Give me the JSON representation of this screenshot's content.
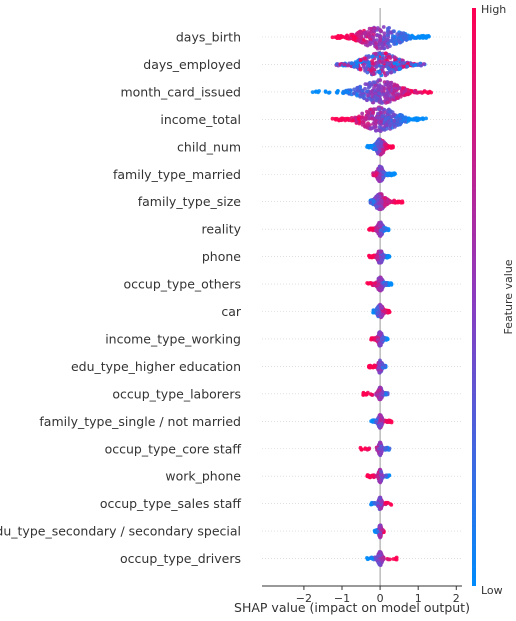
{
  "chart_data": {
    "type": "scatter",
    "subtype": "shap-beeswarm",
    "title": "",
    "xlabel": "SHAP value (impact on model output)",
    "xlim": [
      -3.1,
      2.15
    ],
    "xticks": [
      -2,
      -1,
      0,
      1,
      2
    ],
    "xtick_labels": [
      "−2",
      "−1",
      "0",
      "1",
      "2"
    ],
    "zero_line": true,
    "colorbar": {
      "label": "Feature value",
      "high_label": "High",
      "low_label": "Low",
      "low_color": "#008bfb",
      "mid_color": "#8c3bbf",
      "high_color": "#ff0052"
    },
    "features": [
      {
        "name": "days_birth",
        "min": -1.25,
        "max": 1.3,
        "core": 1.0,
        "peak": 0.5,
        "spread": 1.0,
        "corr": -1
      },
      {
        "name": "days_employed",
        "min": -1.15,
        "max": 1.2,
        "core": 0.95,
        "peak": 0.48,
        "spread": 1.0,
        "corr": 0
      },
      {
        "name": "month_card_issued",
        "min": -1.85,
        "max": 1.35,
        "core": 1.0,
        "peak": 0.45,
        "spread": 1.0,
        "corr": 1
      },
      {
        "name": "income_total",
        "min": -1.35,
        "max": 1.25,
        "core": 0.95,
        "peak": 0.55,
        "spread": 1.0,
        "corr": -1
      },
      {
        "name": "child_num",
        "min": -0.35,
        "max": 0.35,
        "core": 0.25,
        "peak": 0.55,
        "spread": 0.55,
        "corr": 1
      },
      {
        "name": "family_type_married",
        "min": -0.2,
        "max": 0.4,
        "core": 0.15,
        "peak": 0.85,
        "spread": 0.6,
        "corr": -1
      },
      {
        "name": "family_type_size",
        "min": -0.25,
        "max": 0.6,
        "core": 0.3,
        "peak": 0.55,
        "spread": 0.55,
        "corr": 1
      },
      {
        "name": "reality",
        "min": -0.3,
        "max": 0.25,
        "core": 0.15,
        "peak": 0.7,
        "spread": 0.45,
        "corr": -1
      },
      {
        "name": "phone",
        "min": -0.3,
        "max": 0.25,
        "core": 0.12,
        "peak": 0.7,
        "spread": 0.45,
        "corr": -1
      },
      {
        "name": "occup_type_others",
        "min": -0.35,
        "max": 0.3,
        "core": 0.15,
        "peak": 0.7,
        "spread": 0.45,
        "corr": -1
      },
      {
        "name": "car",
        "min": -0.2,
        "max": 0.25,
        "core": 0.15,
        "peak": 0.55,
        "spread": 0.45,
        "corr": 1
      },
      {
        "name": "income_type_working",
        "min": -0.25,
        "max": 0.2,
        "core": 0.12,
        "peak": 0.6,
        "spread": 0.45,
        "corr": -1
      },
      {
        "name": "edu_type_higher education",
        "min": -0.3,
        "max": 0.15,
        "core": 0.1,
        "peak": 0.65,
        "spread": 0.4,
        "corr": -1
      },
      {
        "name": "occup_type_laborers",
        "min": -0.45,
        "max": 0.2,
        "core": 0.1,
        "peak": 0.65,
        "spread": 0.4,
        "corr": -1
      },
      {
        "name": "family_type_single / not married",
        "min": -0.25,
        "max": 0.3,
        "core": 0.1,
        "peak": 0.65,
        "spread": 0.4,
        "corr": 1
      },
      {
        "name": "occup_type_core staff",
        "min": -0.55,
        "max": 0.25,
        "core": 0.08,
        "peak": 0.6,
        "spread": 0.4,
        "corr": -1
      },
      {
        "name": "work_phone",
        "min": -0.35,
        "max": 0.25,
        "core": 0.08,
        "peak": 0.65,
        "spread": 0.4,
        "corr": -1
      },
      {
        "name": "occup_type_sales staff",
        "min": -0.25,
        "max": 0.3,
        "core": 0.08,
        "peak": 0.65,
        "spread": 0.4,
        "corr": 1
      },
      {
        "name": "edu_type_secondary / secondary special",
        "min": -0.15,
        "max": 0.1,
        "core": 0.06,
        "peak": 0.75,
        "spread": 0.4,
        "corr": 1
      },
      {
        "name": "occup_type_drivers",
        "min": -0.35,
        "max": 0.45,
        "core": 0.1,
        "peak": 0.6,
        "spread": 0.45,
        "corr": 1
      }
    ]
  }
}
